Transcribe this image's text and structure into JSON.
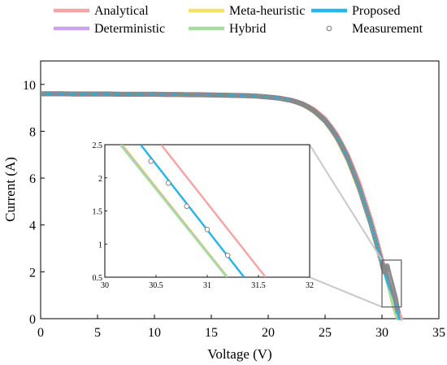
{
  "chart_data": {
    "type": "line",
    "xlabel": "Voltage (V)",
    "ylabel": "Current (A)",
    "xlim": [
      0,
      35
    ],
    "ylim": [
      0,
      11
    ],
    "xticks": [
      0,
      5,
      10,
      15,
      20,
      25,
      30,
      35
    ],
    "yticks": [
      0,
      2,
      4,
      6,
      8,
      10
    ],
    "grid": false,
    "legend_position": "top",
    "series": [
      {
        "name": "Analytical",
        "color": "#f4a6a6",
        "style": "line",
        "x": [
          0,
          5,
          10,
          15,
          18,
          20,
          21,
          22,
          23,
          24,
          25,
          26,
          27,
          28,
          29,
          29.5,
          30,
          30.5,
          31,
          31.5,
          31.7
        ],
        "y": [
          9.6,
          9.59,
          9.58,
          9.55,
          9.52,
          9.47,
          9.42,
          9.34,
          9.2,
          8.95,
          8.55,
          7.9,
          7.0,
          5.8,
          4.3,
          3.45,
          2.55,
          1.6,
          0.95,
          0.22,
          0.0
        ]
      },
      {
        "name": "Meta-heuristic",
        "color": "#f5e06a",
        "style": "line",
        "x": [
          0,
          5,
          10,
          15,
          18,
          20,
          21,
          22,
          23,
          24,
          25,
          26,
          27,
          28,
          29,
          29.5,
          30,
          30.5,
          31,
          31.2,
          31.4
        ],
        "y": [
          9.6,
          9.59,
          9.58,
          9.55,
          9.51,
          9.46,
          9.4,
          9.3,
          9.12,
          8.82,
          8.38,
          7.68,
          6.7,
          5.45,
          3.95,
          3.1,
          2.35,
          1.5,
          0.5,
          0.2,
          0.0
        ]
      },
      {
        "name": "Proposed",
        "color": "#2ab4e8",
        "style": "line",
        "x": [
          0,
          5,
          10,
          15,
          18,
          20,
          21,
          22,
          23,
          24,
          25,
          26,
          27,
          28,
          29,
          29.5,
          30,
          30.5,
          31,
          31.35,
          31.5
        ],
        "y": [
          9.6,
          9.59,
          9.58,
          9.55,
          9.52,
          9.46,
          9.41,
          9.32,
          9.16,
          8.88,
          8.45,
          7.78,
          6.85,
          5.6,
          4.1,
          3.25,
          2.35,
          1.55,
          0.95,
          0.5,
          0.0
        ]
      },
      {
        "name": "Deterministic",
        "color": "#c9a4f0",
        "style": "line",
        "x": [
          0,
          5,
          10,
          15,
          18,
          20,
          21,
          22,
          23,
          24,
          25,
          26,
          27,
          28,
          29,
          29.5,
          30,
          30.5,
          31,
          31.2,
          31.4
        ],
        "y": [
          9.6,
          9.59,
          9.58,
          9.55,
          9.51,
          9.46,
          9.4,
          9.3,
          9.12,
          8.83,
          8.38,
          7.69,
          6.71,
          5.46,
          3.96,
          3.12,
          2.37,
          1.52,
          0.52,
          0.2,
          0.0
        ]
      },
      {
        "name": "Hybrid",
        "color": "#a8dca0",
        "style": "line",
        "x": [
          0,
          5,
          10,
          15,
          18,
          20,
          21,
          22,
          23,
          24,
          25,
          26,
          27,
          28,
          29,
          29.5,
          30,
          30.5,
          31,
          31.2,
          31.4
        ],
        "y": [
          9.6,
          9.59,
          9.58,
          9.55,
          9.51,
          9.46,
          9.4,
          9.3,
          9.12,
          8.83,
          8.38,
          7.69,
          6.71,
          5.46,
          3.96,
          3.12,
          2.38,
          1.53,
          0.53,
          0.2,
          0.0
        ]
      },
      {
        "name": "Measurement",
        "color": "#888888",
        "style": "markers",
        "x": [
          0,
          1,
          2,
          3,
          4,
          5,
          6,
          7,
          8,
          9,
          10,
          11,
          12,
          13,
          14,
          15,
          16,
          17,
          18,
          19,
          20,
          21,
          22,
          22.5,
          23,
          23.5,
          24,
          24.5,
          25,
          25.5,
          26,
          26.5,
          27,
          27.5,
          28,
          28.5,
          29,
          29.5,
          30,
          30.2,
          30.45,
          30.6,
          30.8,
          31,
          31.2,
          31.4
        ],
        "y": [
          9.6,
          9.6,
          9.6,
          9.59,
          9.59,
          9.59,
          9.59,
          9.58,
          9.58,
          9.58,
          9.58,
          9.57,
          9.57,
          9.56,
          9.56,
          9.55,
          9.54,
          9.53,
          9.52,
          9.5,
          9.46,
          9.41,
          9.32,
          9.25,
          9.16,
          9.04,
          8.88,
          8.68,
          8.45,
          8.15,
          7.78,
          7.35,
          6.85,
          6.25,
          5.6,
          4.85,
          4.1,
          3.25,
          2.35,
          2.0,
          2.25,
          1.92,
          1.57,
          1.2,
          0.83,
          0.3
        ]
      }
    ],
    "inset": {
      "xlim": [
        30,
        32
      ],
      "ylim": [
        0.5,
        2.5
      ],
      "xticks": [
        30,
        30.5,
        31,
        31.5,
        32
      ],
      "yticks": [
        0.5,
        1,
        1.5,
        2,
        2.5
      ],
      "zoom_rect_data": {
        "x": [
          30,
          31.7
        ],
        "y": [
          0.5,
          2.5
        ]
      },
      "series": [
        {
          "name": "Analytical",
          "x": [
            30.55,
            31.57
          ],
          "y": [
            2.5,
            0.5
          ]
        },
        {
          "name": "Proposed",
          "x": [
            30.35,
            31.36
          ],
          "y": [
            2.5,
            0.5
          ]
        },
        {
          "name": "Meta-heuristic",
          "x": [
            30.17,
            31.2
          ],
          "y": [
            2.5,
            0.5
          ]
        },
        {
          "name": "Hybrid",
          "x": [
            30.15,
            31.19
          ],
          "y": [
            2.5,
            0.5
          ]
        },
        {
          "name": "Deterministic",
          "x": [
            30.16,
            31.195
          ],
          "y": [
            2.5,
            0.5
          ]
        },
        {
          "name": "Measurement",
          "x": [
            30.45,
            30.62,
            30.8,
            31.0,
            31.2
          ],
          "y": [
            2.25,
            1.92,
            1.57,
            1.22,
            0.83
          ]
        }
      ]
    }
  }
}
